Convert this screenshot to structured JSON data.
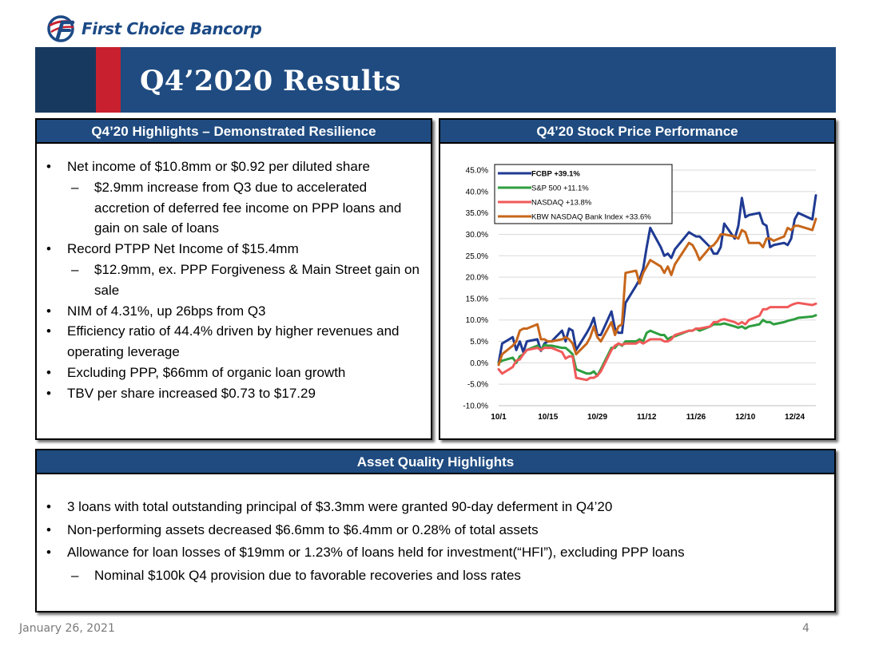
{
  "brand": {
    "name": "First Choice Bancorp"
  },
  "slide": {
    "title": "Q4’2020 Results",
    "date": "January 26, 2021",
    "page": "4"
  },
  "highlights": {
    "heading": "Q4’20 Highlights – Demonstrated Resilience",
    "items": [
      {
        "level": 1,
        "text": "Net income of $10.8mm or $0.92 per diluted share"
      },
      {
        "level": 2,
        "text": "$2.9mm increase from Q3 due to accelerated accretion of deferred fee income on PPP loans and gain on sale of loans"
      },
      {
        "level": 1,
        "text": "Record PTPP Net Income of $15.4mm"
      },
      {
        "level": 2,
        "text": "$12.9mm, ex. PPP Forgiveness & Main Street gain on sale"
      },
      {
        "level": 1,
        "text": "NIM of 4.31%, up 26bps from Q3"
      },
      {
        "level": 1,
        "text": "Efficiency ratio of 44.4% driven by higher revenues and operating leverage"
      },
      {
        "level": 1,
        "text": "Excluding PPP, $66mm of organic loan growth"
      },
      {
        "level": 1,
        "text": "TBV per share increased $0.73 to $17.29"
      }
    ]
  },
  "performance": {
    "heading": "Q4’20 Stock Price Performance"
  },
  "asset_quality": {
    "heading": "Asset Quality Highlights",
    "items": [
      {
        "level": 1,
        "text": "3 loans with total outstanding principal of $3.3mm were granted 90-day deferment in Q4’20"
      },
      {
        "level": 1,
        "text": "Non-performing assets decreased $6.6mm to $6.4mm or 0.28% of total assets"
      },
      {
        "level": 1,
        "text": "Allowance for loan losses of $19mm or 1.23% of loans held for investment(“HFI”), excluding PPP loans"
      },
      {
        "level": 2,
        "text": "Nominal $100k Q4 provision due to favorable recoveries and loss rates"
      }
    ]
  },
  "colors": {
    "brand_navy": "#1f4b80",
    "brand_red": "#c8202f"
  },
  "chart_data": {
    "type": "line",
    "title": "",
    "xlabel": "",
    "ylabel": "",
    "x_ticks": [
      "10/1",
      "10/15",
      "10/29",
      "11/12",
      "11/26",
      "12/10",
      "12/24"
    ],
    "x_tick_days": [
      0,
      14,
      28,
      42,
      56,
      70,
      84
    ],
    "yticks": [
      "-10.0%",
      "-5.0%",
      "0.0%",
      "5.0%",
      "10.0%",
      "15.0%",
      "20.0%",
      "25.0%",
      "30.0%",
      "35.0%",
      "40.0%",
      "45.0%"
    ],
    "ylim": [
      -10,
      45
    ],
    "grid": "horizontal",
    "legend_position": "top-left",
    "x_days": [
      0,
      1,
      4,
      5,
      6,
      7,
      8,
      11,
      12,
      13,
      14,
      15,
      18,
      19,
      20,
      21,
      22,
      25,
      26,
      27,
      28,
      29,
      32,
      33,
      34,
      35,
      36,
      39,
      40,
      41,
      42,
      43,
      46,
      47,
      48,
      49,
      50,
      54,
      55,
      56,
      57,
      60,
      61,
      62,
      63,
      64,
      67,
      68,
      69,
      70,
      71,
      74,
      75,
      76,
      77,
      78,
      81,
      82,
      83,
      84,
      85,
      89,
      90
    ],
    "series": [
      {
        "name": "FCBP +39.1%",
        "color": "#1f3a93",
        "bold": true,
        "values": [
          0,
          4.5,
          6,
          3,
          5,
          2.5,
          5,
          5.5,
          2.8,
          4.5,
          5,
          5,
          7.5,
          5,
          8,
          7.5,
          3,
          7,
          8.5,
          10.5,
          6.5,
          6.5,
          12,
          8,
          7,
          7,
          14,
          18,
          19.5,
          22,
          27,
          31.5,
          27,
          25,
          25.5,
          24.5,
          26.5,
          30.5,
          30,
          29.5,
          29.5,
          27,
          25.5,
          25.5,
          27,
          32.5,
          29,
          32,
          38.5,
          34,
          34.5,
          35,
          32.5,
          32,
          27,
          27.5,
          28,
          27.5,
          29,
          33.5,
          35,
          33.5,
          39.1
        ]
      },
      {
        "name": "S&P 500 +11.1%",
        "color": "#2e9e3f",
        "bold": false,
        "values": [
          0,
          0.5,
          1.2,
          0,
          1.5,
          2,
          3,
          4,
          3,
          4.2,
          4,
          4,
          3.5,
          3.5,
          2.8,
          2,
          -1.5,
          -2.5,
          -2.5,
          -2,
          -3,
          -1.5,
          3.5,
          3.5,
          4.5,
          4,
          5,
          5,
          5.5,
          5,
          7,
          7.5,
          6.5,
          6.5,
          5.5,
          6,
          6.2,
          7.5,
          7.5,
          8,
          7.5,
          8.5,
          9,
          9,
          9,
          9.2,
          8.5,
          8.2,
          8.5,
          8,
          8.5,
          9,
          10,
          9.5,
          9.5,
          9,
          9.5,
          9.8,
          10,
          10.2,
          10.5,
          10.8,
          11.1
        ]
      },
      {
        "name": "NASDAQ +13.8%",
        "color": "#f05a5a",
        "bold": false,
        "values": [
          -1.5,
          -2.5,
          -1,
          0.5,
          0.8,
          2,
          3,
          3.5,
          3,
          3.5,
          3.5,
          3.5,
          2.5,
          1,
          1.5,
          1.5,
          -3.5,
          -4,
          -3.5,
          -3.5,
          -3,
          -2,
          3,
          4,
          4.5,
          4.2,
          4.5,
          4.5,
          5,
          4.5,
          5,
          5.5,
          5.5,
          5,
          5,
          5.5,
          6.5,
          7.5,
          7.5,
          8,
          8,
          8.5,
          9.5,
          9.5,
          10,
          10.2,
          9.5,
          9,
          9.5,
          9,
          10,
          11,
          12.5,
          12.5,
          13,
          13,
          13,
          13,
          13.5,
          13.8,
          14,
          13.5,
          13.8
        ]
      },
      {
        "name": "KBW NASDAQ Bank Index +33.6%",
        "color": "#c7661a",
        "bold": false,
        "values": [
          -0.5,
          2,
          4,
          5,
          7.5,
          8,
          8,
          9,
          5.5,
          5.5,
          5,
          5,
          5.5,
          6,
          5.5,
          4.5,
          2,
          4.5,
          6,
          8.5,
          6,
          5,
          9.5,
          6.5,
          8.5,
          9,
          21,
          21.5,
          18.5,
          21,
          22.5,
          24,
          22.5,
          21,
          22.5,
          20.5,
          23,
          28,
          27.5,
          26,
          24,
          27,
          27.5,
          28.5,
          30,
          30,
          29.5,
          29,
          31,
          30.5,
          28,
          28,
          27,
          29,
          29,
          28.5,
          29.5,
          31.5,
          31,
          32,
          32,
          31,
          33.6
        ]
      }
    ]
  }
}
